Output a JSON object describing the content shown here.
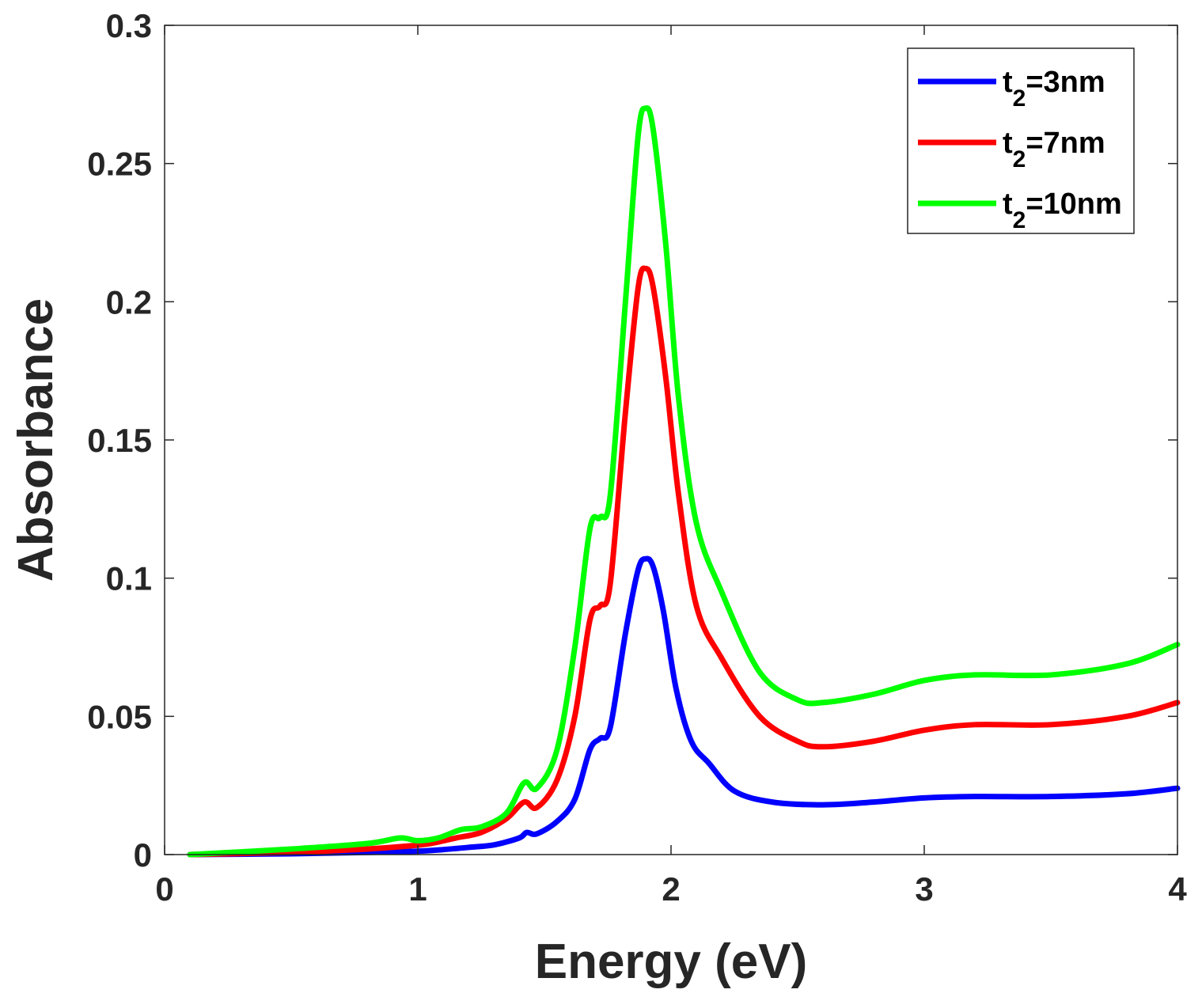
{
  "chart_data": {
    "type": "line",
    "title": "",
    "xlabel": "Energy (eV)",
    "ylabel": "Absorbance",
    "xlim": [
      0,
      4
    ],
    "ylim": [
      0,
      0.3
    ],
    "xticks": [
      0,
      1,
      2,
      3,
      4
    ],
    "xtick_labels": [
      "0",
      "1",
      "2",
      "3",
      "4"
    ],
    "yticks": [
      0,
      0.05,
      0.1,
      0.15,
      0.2,
      0.25,
      0.3
    ],
    "ytick_labels": [
      "0",
      "0.05",
      "0.1",
      "0.15",
      "0.2",
      "0.25",
      "0.3"
    ],
    "grid": false,
    "legend_position": "top-right",
    "series": [
      {
        "name": "t2=3nm",
        "label_base": "t",
        "label_sub": "2",
        "label_rest": "=3nm",
        "color": "#0000ff",
        "x": [
          0.1,
          0.5,
          0.8,
          1.0,
          1.1,
          1.2,
          1.3,
          1.4,
          1.43,
          1.47,
          1.55,
          1.62,
          1.68,
          1.72,
          1.76,
          1.82,
          1.87,
          1.9,
          1.93,
          1.97,
          2.02,
          2.08,
          2.15,
          2.25,
          2.4,
          2.6,
          2.8,
          3.0,
          3.2,
          3.5,
          3.8,
          4.0
        ],
        "y": [
          0,
          0.0003,
          0.0008,
          0.0012,
          0.0018,
          0.0026,
          0.0035,
          0.006,
          0.008,
          0.0075,
          0.012,
          0.02,
          0.038,
          0.042,
          0.046,
          0.08,
          0.103,
          0.107,
          0.104,
          0.088,
          0.06,
          0.041,
          0.033,
          0.023,
          0.019,
          0.018,
          0.019,
          0.0205,
          0.021,
          0.021,
          0.022,
          0.024
        ]
      },
      {
        "name": "t2=7nm",
        "label_base": "t",
        "label_sub": "2",
        "label_rest": "=7nm",
        "color": "#ff0000",
        "x": [
          0.1,
          0.5,
          0.8,
          0.95,
          1.05,
          1.15,
          1.25,
          1.35,
          1.42,
          1.47,
          1.55,
          1.62,
          1.68,
          1.72,
          1.76,
          1.82,
          1.87,
          1.9,
          1.93,
          1.98,
          2.03,
          2.1,
          2.2,
          2.35,
          2.5,
          2.6,
          2.8,
          3.0,
          3.2,
          3.5,
          3.8,
          4.0
        ],
        "y": [
          0,
          0.0008,
          0.002,
          0.003,
          0.004,
          0.006,
          0.008,
          0.013,
          0.019,
          0.017,
          0.027,
          0.05,
          0.085,
          0.09,
          0.098,
          0.16,
          0.205,
          0.212,
          0.205,
          0.172,
          0.13,
          0.09,
          0.071,
          0.05,
          0.041,
          0.039,
          0.041,
          0.045,
          0.047,
          0.047,
          0.05,
          0.055
        ]
      },
      {
        "name": "t2=10nm",
        "label_base": "t",
        "label_sub": "2",
        "label_rest": "=10nm",
        "color": "#00ff00",
        "x": [
          0.1,
          0.5,
          0.8,
          0.93,
          1.0,
          1.08,
          1.17,
          1.25,
          1.35,
          1.42,
          1.47,
          1.55,
          1.62,
          1.68,
          1.72,
          1.76,
          1.82,
          1.87,
          1.9,
          1.93,
          1.98,
          2.03,
          2.1,
          2.2,
          2.35,
          2.5,
          2.6,
          2.8,
          3.0,
          3.2,
          3.5,
          3.8,
          4.0
        ],
        "y": [
          0,
          0.002,
          0.004,
          0.006,
          0.005,
          0.006,
          0.009,
          0.01,
          0.015,
          0.026,
          0.024,
          0.038,
          0.075,
          0.118,
          0.122,
          0.13,
          0.2,
          0.26,
          0.27,
          0.262,
          0.22,
          0.165,
          0.12,
          0.095,
          0.066,
          0.056,
          0.055,
          0.058,
          0.063,
          0.065,
          0.065,
          0.069,
          0.076
        ]
      }
    ]
  }
}
